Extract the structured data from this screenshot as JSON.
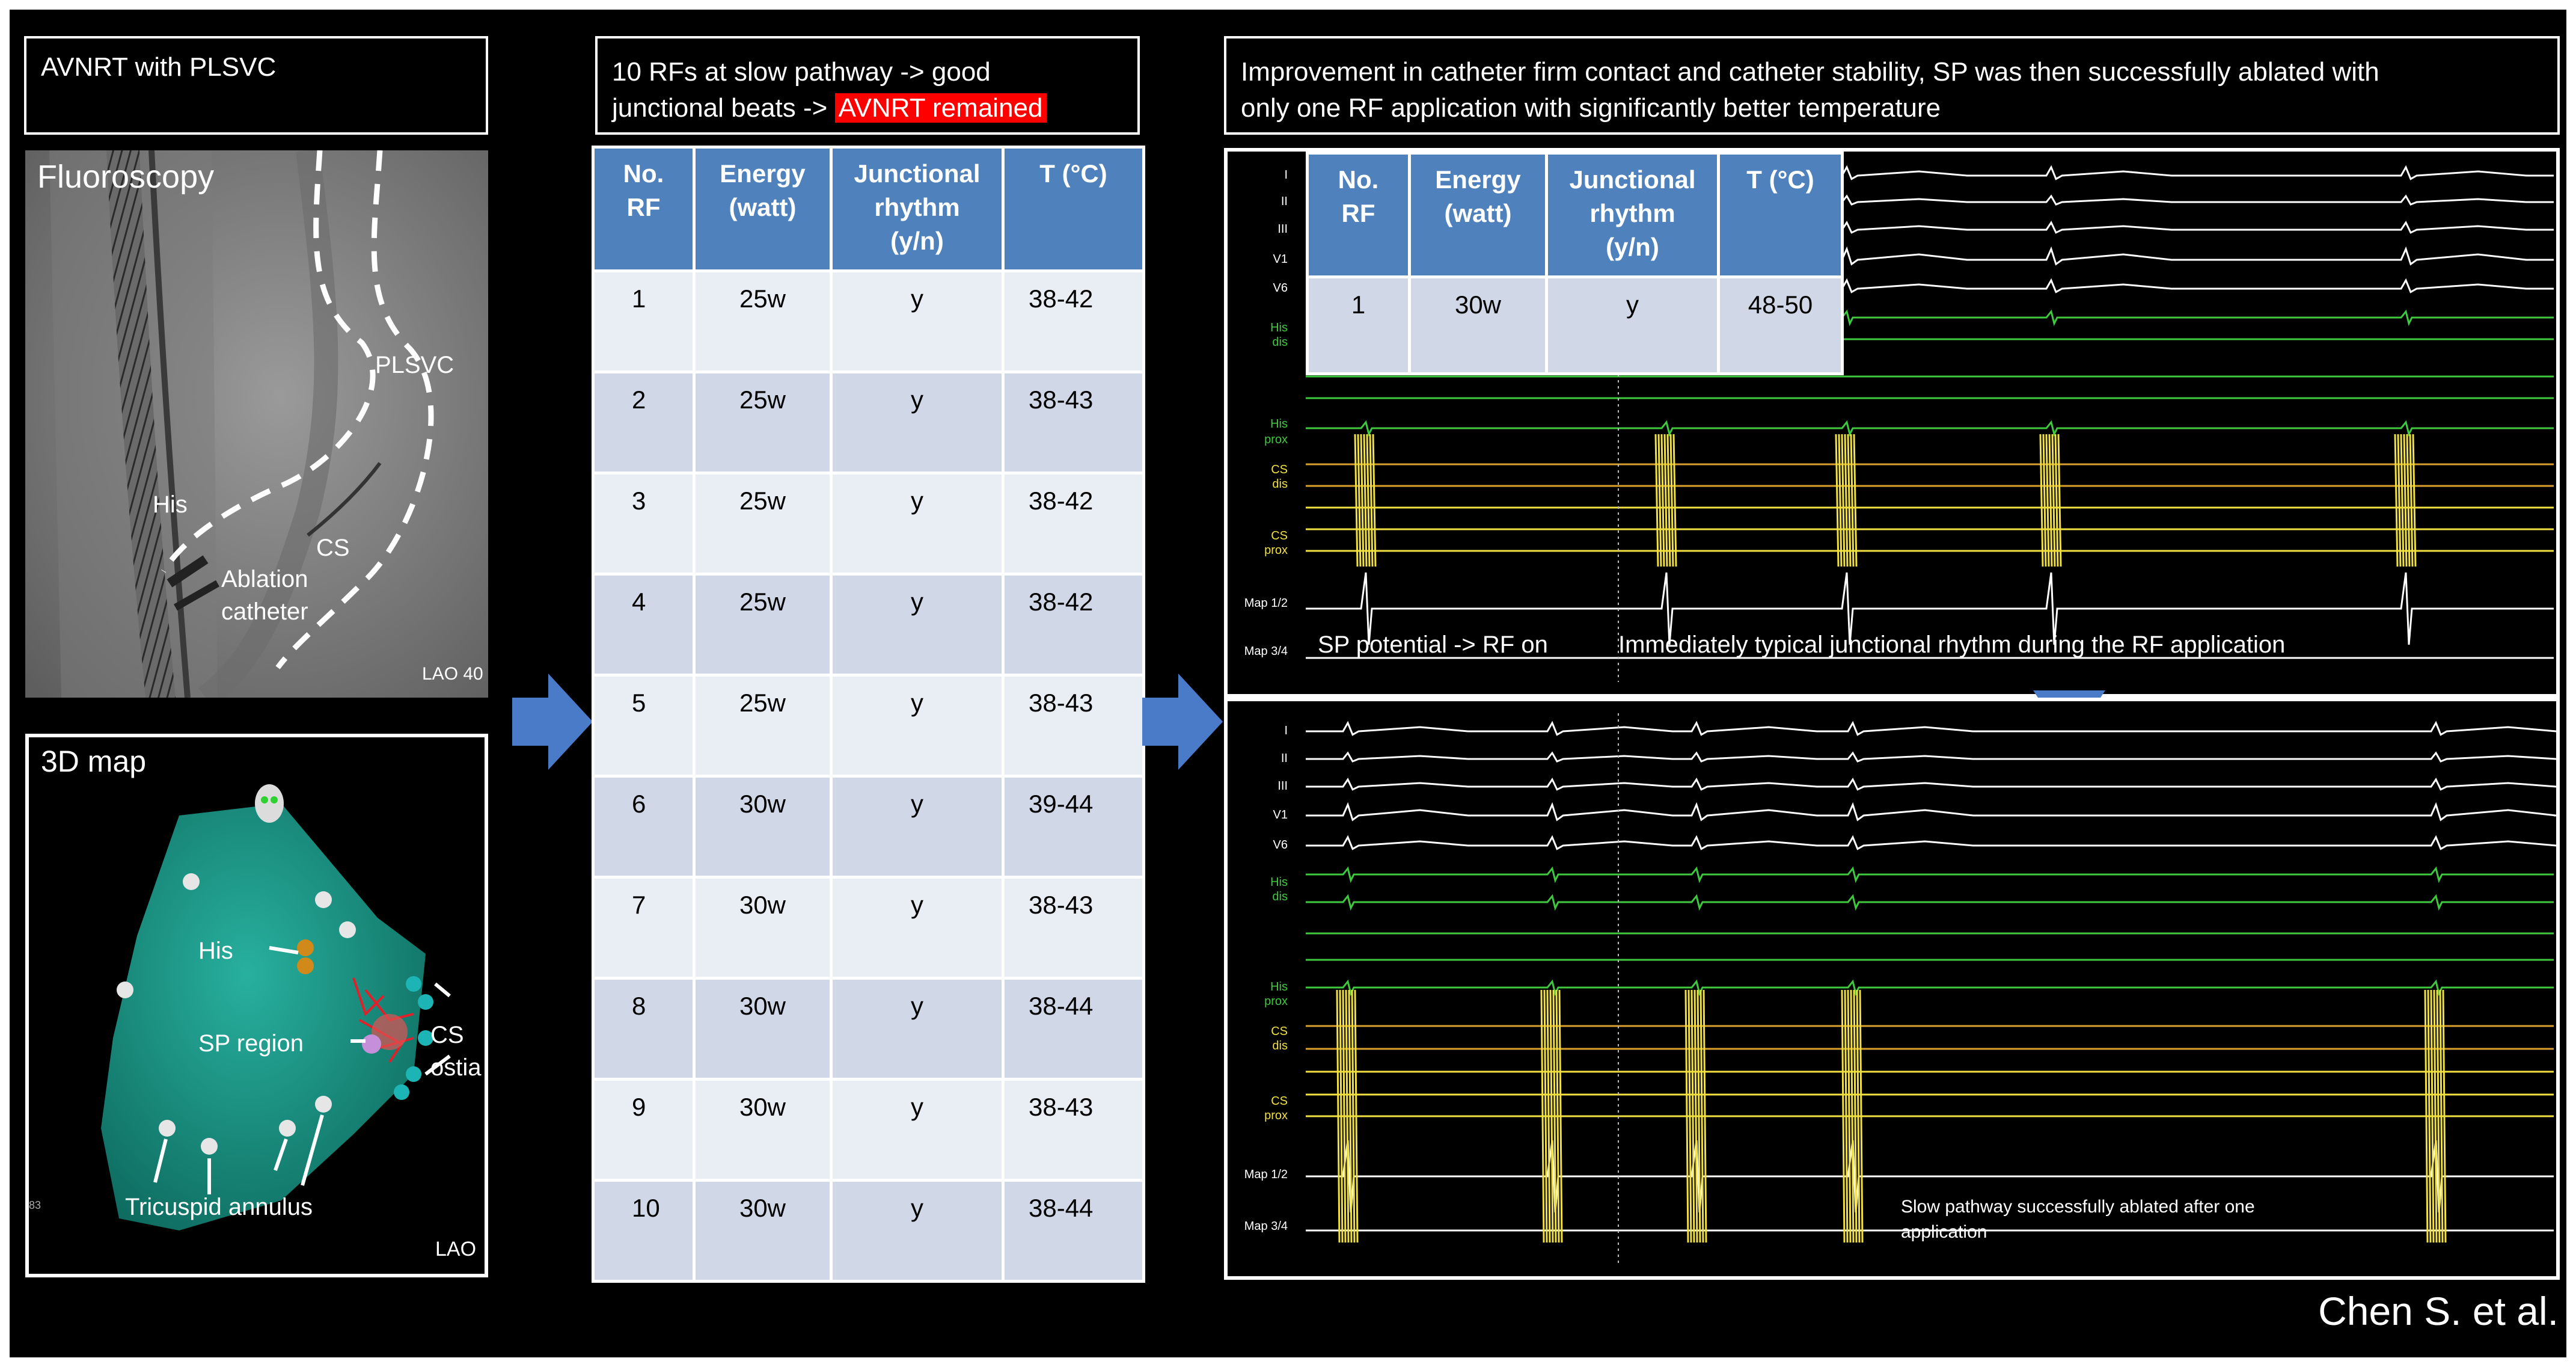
{
  "left_panel": {
    "title": "AVNRT with PLSVC",
    "fluoroscopy": {
      "heading": "Fluoroscopy",
      "labels": {
        "plsvc": "PLSVC",
        "his": "His",
        "cs": "CS",
        "ablation": "Ablation",
        "catheter": "catheter",
        "view": "LAO 40"
      }
    },
    "map3d": {
      "heading": "3D map",
      "labels": {
        "his": "His",
        "sp_region": "SP region",
        "cs": "CS",
        "ostia": "ostia",
        "tricuspid": "Tricuspid annulus",
        "view": "LAO",
        "corner": "83"
      }
    }
  },
  "middle_panel": {
    "title_line1": "10 RFs at slow pathway -> good",
    "title_line2_pre": "junctional beats -> ",
    "title_highlight": "AVNRT remained",
    "table": {
      "headers": [
        [
          "No.",
          "RF"
        ],
        [
          "Energy",
          "(watt)"
        ],
        [
          "Junctional",
          "rhythm",
          "(y/n)"
        ],
        [
          "T (°C)"
        ]
      ],
      "rows": [
        [
          "1",
          "25w",
          "y",
          "38-42"
        ],
        [
          "2",
          "25w",
          "y",
          "38-43"
        ],
        [
          "3",
          "25w",
          "y",
          "38-42"
        ],
        [
          "4",
          "25w",
          "y",
          "38-42"
        ],
        [
          "5",
          "25w",
          "y",
          "38-43"
        ],
        [
          "6",
          "30w",
          "y",
          "39-44"
        ],
        [
          "7",
          "30w",
          "y",
          "38-43"
        ],
        [
          "8",
          "30w",
          "y",
          "38-44"
        ],
        [
          "9",
          "30w",
          "y",
          "38-43"
        ],
        [
          "10",
          "30w",
          "y",
          "38-44"
        ]
      ]
    }
  },
  "right_panel": {
    "title_line1": "Improvement in catheter firm contact and catheter stability, SP was then successfully ablated with",
    "title_line2": "only one RF application with significantly better temperature",
    "table": {
      "headers": [
        [
          "No.",
          "RF"
        ],
        [
          "Energy",
          "(watt)"
        ],
        [
          "Junctional",
          "rhythm",
          "(y/n)"
        ],
        [
          "T (°C)"
        ]
      ],
      "rows": [
        [
          "1",
          "30w",
          "y",
          "48-50"
        ]
      ]
    },
    "top_tracing": {
      "labels": {
        "i": "I",
        "ii": "II",
        "iii": "III",
        "v1": "V1",
        "v6": "V6",
        "his_dis1": "His",
        "his_dis2": "dis",
        "his_prox1": "His",
        "his_prox2": "prox",
        "cs_dis1": "CS",
        "cs_dis2": "dis",
        "cs_prox1": "CS",
        "cs_prox2": "prox",
        "map12": "Map 1/2",
        "map34": "Map 3/4"
      },
      "annotation_left": "SP potential -> RF on",
      "annotation_right": "Immediately typical junctional rhythm during the RF application"
    },
    "bottom_tracing": {
      "labels": {
        "i": "I",
        "ii": "II",
        "iii": "III",
        "v1": "V1",
        "v6": "V6",
        "his_dis1": "His",
        "his_dis2": "dis",
        "his_prox1": "His",
        "his_prox2": "prox",
        "cs_dis1": "CS",
        "cs_dis2": "dis",
        "cs_prox1": "CS",
        "cs_prox2": "prox",
        "map12": "Map 1/2",
        "map34": "Map 3/4"
      },
      "annotation_line1": "Slow pathway successfully ablated after one",
      "annotation_line2": "application"
    }
  },
  "credit": "Chen S. et al.",
  "colors": {
    "arrow": "#4a7bc8",
    "header": "#4f81bd",
    "row_even": "#d0d8e8",
    "row_odd": "#e9edf4",
    "highlight": "#ff0000",
    "map_surface": "#1a9c8c",
    "ecg_green": "#3fc93f",
    "ecg_yellow": "#f0e040",
    "ecg_orange": "#d9a030"
  }
}
